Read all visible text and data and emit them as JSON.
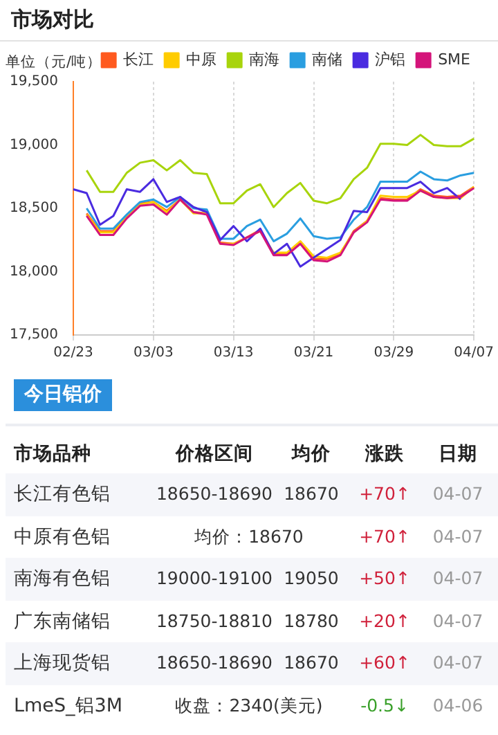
{
  "chart_data": [
    {
      "type": "line",
      "title": "市场对比",
      "ylabel": "单位（元/吨）",
      "categories": [
        "02/23",
        null,
        null,
        null,
        null,
        null,
        "03/03",
        null,
        null,
        null,
        null,
        null,
        "03/13",
        null,
        null,
        null,
        null,
        null,
        "03/21",
        null,
        null,
        null,
        null,
        null,
        "03/29",
        null,
        null,
        null,
        null,
        null,
        "04/07"
      ],
      "ylim": [
        17500,
        19500
      ],
      "yticks": [
        {
          "value": 17500,
          "label": "17,500"
        },
        {
          "value": 18000,
          "label": "18,000"
        },
        {
          "value": 18500,
          "label": "18,500"
        },
        {
          "value": 19000,
          "label": "19,000"
        },
        {
          "value": 19500,
          "label": "19,500"
        }
      ],
      "grid": "x",
      "legend": "top right",
      "series": [
        {
          "name": "长江",
          "color": "#ff5a1f",
          "values": [
            null,
            18460,
            18320,
            18320,
            18440,
            18540,
            18550,
            18480,
            18570,
            18470,
            18460,
            18230,
            18220,
            18270,
            18330,
            18140,
            18140,
            18230,
            18100,
            18100,
            18140,
            18320,
            18400,
            18580,
            18570,
            18570,
            18650,
            18600,
            18590,
            18600,
            18670
          ]
        },
        {
          "name": "中原",
          "color": "#ffcc00",
          "values": [
            null,
            18450,
            18310,
            18310,
            18430,
            18530,
            18550,
            18470,
            18570,
            18460,
            18460,
            18220,
            18220,
            18270,
            18320,
            18150,
            18150,
            18240,
            18120,
            18110,
            18150,
            18310,
            18400,
            18600,
            18590,
            18590,
            18640,
            18590,
            18580,
            18580,
            18670
          ]
        },
        {
          "name": "南海",
          "color": "#a8d40c",
          "values": [
            null,
            18800,
            18630,
            18630,
            18780,
            18860,
            18880,
            18800,
            18880,
            18780,
            18770,
            18540,
            18540,
            18640,
            18690,
            18510,
            18620,
            18700,
            18560,
            18540,
            18580,
            18730,
            18820,
            19010,
            19010,
            19000,
            19080,
            19000,
            18990,
            18990,
            19050
          ]
        },
        {
          "name": "南储",
          "color": "#2a9ee0",
          "values": [
            null,
            18500,
            18340,
            18340,
            18450,
            18550,
            18570,
            18510,
            18590,
            18500,
            18490,
            18260,
            18260,
            18360,
            18410,
            18240,
            18300,
            18420,
            18280,
            18260,
            18270,
            18410,
            18510,
            18710,
            18710,
            18710,
            18790,
            18730,
            18720,
            18760,
            18780
          ]
        },
        {
          "name": "沪铝",
          "color": "#4a2be0",
          "values": [
            18650,
            18620,
            18370,
            18440,
            18650,
            18630,
            18730,
            18550,
            18590,
            18510,
            18470,
            18250,
            18360,
            18240,
            18340,
            18140,
            18220,
            18040,
            18110,
            18180,
            18250,
            18480,
            18470,
            18660,
            18660,
            18660,
            18710,
            18620,
            18660,
            18570,
            null
          ]
        },
        {
          "name": "SME",
          "color": "#d4147a",
          "values": [
            null,
            18440,
            18290,
            18290,
            18420,
            18520,
            18530,
            18450,
            18570,
            18470,
            18450,
            18220,
            18210,
            18270,
            18320,
            18130,
            18130,
            18220,
            18090,
            18080,
            18130,
            18310,
            18390,
            18570,
            18560,
            18560,
            18640,
            18590,
            18580,
            18590,
            18660
          ]
        }
      ]
    },
    {
      "type": "other",
      "title": "今日铝价",
      "categories": [
        "市场品种",
        "价格区间",
        "均价",
        "涨跌",
        "日期"
      ],
      "y_categories": [
        "长江有色铝",
        "中原有色铝",
        "南海有色铝",
        "广东南储铝",
        "上海现货铝",
        "LmeS_铝3M"
      ],
      "cell_labels": [
        [
          "18650-18690",
          "18670",
          "+70↑",
          "04-07"
        ],
        [
          "均价：18670",
          null,
          "+70↑",
          "04-07"
        ],
        [
          "19000-19100",
          "19050",
          "+50↑",
          "04-07"
        ],
        [
          "18750-18810",
          "18780",
          "+20↑",
          "04-07"
        ],
        [
          "18650-18690",
          "18670",
          "+60↑",
          "04-07"
        ],
        [
          "收盘：2340(美元)",
          null,
          "-0.5↓",
          "04-06"
        ]
      ],
      "colors": [
        "#d0213b",
        "#d0213b",
        "#d0213b",
        "#d0213b",
        "#d0213b",
        "#3aa02a"
      ]
    }
  ]
}
